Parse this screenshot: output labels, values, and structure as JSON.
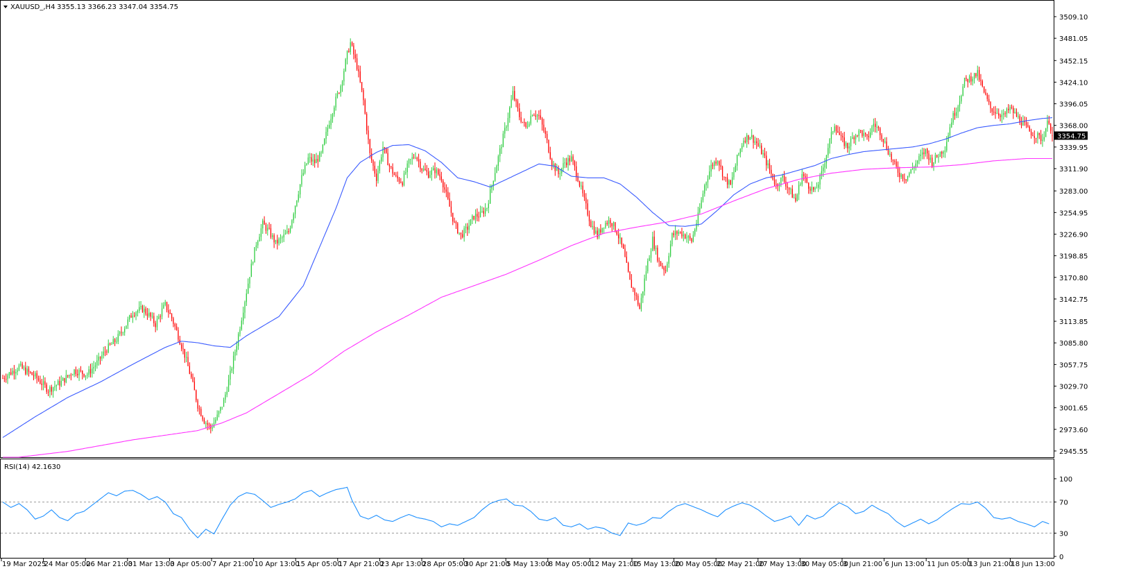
{
  "header": {
    "symbol": "XAUUSD_,H4",
    "ohlc": "3355.13 3366.23 3347.04 3354.75"
  },
  "price_axis": {
    "ticks": [
      "3509.10",
      "3481.05",
      "3452.15",
      "3424.10",
      "3396.05",
      "3368.00",
      "3339.95",
      "3311.90",
      "3283.00",
      "3254.95",
      "3226.90",
      "3198.85",
      "3170.80",
      "3142.75",
      "3113.85",
      "3085.80",
      "3057.75",
      "3029.70",
      "3001.65",
      "2973.60",
      "2945.55"
    ],
    "current_price": "3354.75"
  },
  "rsi_panel": {
    "label": "RSI(14) 42.1630",
    "ticks": [
      "100",
      "70",
      "30",
      "0"
    ],
    "levels": [
      70,
      30
    ]
  },
  "time_axis": {
    "labels": [
      "19 Mar 2025",
      "24 Mar 05:00",
      "26 Mar 21:00",
      "31 Mar 13:00",
      "3 Apr 05:00",
      "7 Apr 21:00",
      "10 Apr 13:00",
      "15 Apr 05:00",
      "17 Apr 21:00",
      "23 Apr 13:00",
      "28 Apr 05:00",
      "30 Apr 21:00",
      "5 May 13:00",
      "8 May 05:00",
      "12 May 21:00",
      "15 May 13:00",
      "20 May 05:00",
      "22 May 21:00",
      "27 May 13:00",
      "30 May 05:00",
      "3 Jun 21:00",
      "6 Jun 13:00",
      "11 Jun 05:00",
      "13 Jun 21:00",
      "18 Jun 13:00"
    ]
  },
  "colors": {
    "bull": "#2ecc40",
    "bear": "#ff0000",
    "ma_fast": "#3a5bff",
    "ma_slow": "#ff33ff",
    "rsi": "#1e90ff",
    "price_label_bg": "#000000"
  },
  "chart_data": {
    "type": "candlestick",
    "title": "XAUUSD_,H4",
    "ylim": [
      2945.55,
      3509.1
    ],
    "x_start": "19 Mar 2025",
    "x_end": "18 Jun 13:00",
    "ohlc_last": {
      "open": 3355.13,
      "high": 3366.23,
      "low": 3347.04,
      "close": 3354.75
    },
    "price_path": [
      [
        0,
        3040
      ],
      [
        10,
        3055
      ],
      [
        20,
        3042
      ],
      [
        28,
        3025
      ],
      [
        36,
        3035
      ],
      [
        44,
        3050
      ],
      [
        52,
        3045
      ],
      [
        58,
        3060
      ],
      [
        64,
        3078
      ],
      [
        70,
        3090
      ],
      [
        76,
        3110
      ],
      [
        80,
        3125
      ],
      [
        86,
        3130
      ],
      [
        90,
        3122
      ],
      [
        94,
        3110
      ],
      [
        98,
        3128
      ],
      [
        100,
        3135
      ],
      [
        104,
        3118
      ],
      [
        108,
        3095
      ],
      [
        112,
        3070
      ],
      [
        116,
        3040
      ],
      [
        120,
        3005
      ],
      [
        124,
        2985
      ],
      [
        128,
        2975
      ],
      [
        132,
        2990
      ],
      [
        136,
        3010
      ],
      [
        140,
        3045
      ],
      [
        144,
        3085
      ],
      [
        148,
        3130
      ],
      [
        152,
        3175
      ],
      [
        156,
        3215
      ],
      [
        160,
        3240
      ],
      [
        164,
        3230
      ],
      [
        168,
        3215
      ],
      [
        172,
        3222
      ],
      [
        176,
        3230
      ],
      [
        180,
        3265
      ],
      [
        184,
        3300
      ],
      [
        188,
        3325
      ],
      [
        192,
        3320
      ],
      [
        196,
        3330
      ],
      [
        200,
        3365
      ],
      [
        204,
        3395
      ],
      [
        208,
        3420
      ],
      [
        212,
        3460
      ],
      [
        214,
        3475
      ],
      [
        218,
        3445
      ],
      [
        222,
        3400
      ],
      [
        226,
        3330
      ],
      [
        230,
        3300
      ],
      [
        234,
        3340
      ],
      [
        238,
        3315
      ],
      [
        242,
        3300
      ],
      [
        246,
        3295
      ],
      [
        250,
        3320
      ],
      [
        254,
        3330
      ],
      [
        258,
        3312
      ],
      [
        262,
        3305
      ],
      [
        266,
        3310
      ],
      [
        270,
        3300
      ],
      [
        274,
        3270
      ],
      [
        278,
        3240
      ],
      [
        282,
        3225
      ],
      [
        286,
        3235
      ],
      [
        290,
        3250
      ],
      [
        294,
        3252
      ],
      [
        298,
        3262
      ],
      [
        302,
        3300
      ],
      [
        306,
        3335
      ],
      [
        310,
        3370
      ],
      [
        314,
        3410
      ],
      [
        318,
        3380
      ],
      [
        322,
        3365
      ],
      [
        326,
        3385
      ],
      [
        330,
        3380
      ],
      [
        334,
        3355
      ],
      [
        338,
        3320
      ],
      [
        342,
        3305
      ],
      [
        346,
        3320
      ],
      [
        350,
        3325
      ],
      [
        354,
        3300
      ],
      [
        358,
        3270
      ],
      [
        362,
        3240
      ],
      [
        366,
        3225
      ],
      [
        370,
        3240
      ],
      [
        374,
        3245
      ],
      [
        378,
        3230
      ],
      [
        382,
        3205
      ],
      [
        386,
        3165
      ],
      [
        390,
        3145
      ],
      [
        392,
        3130
      ],
      [
        396,
        3180
      ],
      [
        400,
        3220
      ],
      [
        404,
        3190
      ],
      [
        408,
        3180
      ],
      [
        412,
        3225
      ],
      [
        416,
        3230
      ],
      [
        420,
        3225
      ],
      [
        424,
        3218
      ],
      [
        428,
        3250
      ],
      [
        432,
        3290
      ],
      [
        436,
        3315
      ],
      [
        440,
        3325
      ],
      [
        444,
        3300
      ],
      [
        448,
        3290
      ],
      [
        452,
        3325
      ],
      [
        456,
        3350
      ],
      [
        460,
        3355
      ],
      [
        464,
        3345
      ],
      [
        468,
        3330
      ],
      [
        472,
        3310
      ],
      [
        476,
        3290
      ],
      [
        480,
        3300
      ],
      [
        484,
        3285
      ],
      [
        488,
        3270
      ],
      [
        492,
        3305
      ],
      [
        496,
        3290
      ],
      [
        500,
        3282
      ],
      [
        504,
        3305
      ],
      [
        508,
        3340
      ],
      [
        512,
        3370
      ],
      [
        516,
        3350
      ],
      [
        520,
        3340
      ],
      [
        524,
        3355
      ],
      [
        528,
        3360
      ],
      [
        532,
        3350
      ],
      [
        536,
        3370
      ],
      [
        540,
        3360
      ],
      [
        544,
        3340
      ],
      [
        548,
        3320
      ],
      [
        552,
        3305
      ],
      [
        556,
        3300
      ],
      [
        560,
        3312
      ],
      [
        564,
        3325
      ],
      [
        568,
        3335
      ],
      [
        572,
        3320
      ],
      [
        576,
        3330
      ],
      [
        580,
        3340
      ],
      [
        584,
        3375
      ],
      [
        588,
        3395
      ],
      [
        592,
        3425
      ],
      [
        596,
        3430
      ],
      [
        600,
        3435
      ],
      [
        604,
        3410
      ],
      [
        608,
        3390
      ],
      [
        612,
        3385
      ],
      [
        616,
        3380
      ],
      [
        620,
        3390
      ],
      [
        624,
        3380
      ],
      [
        628,
        3370
      ],
      [
        632,
        3360
      ],
      [
        636,
        3355
      ],
      [
        640,
        3350
      ],
      [
        642,
        3365
      ],
      [
        644,
        3375
      ],
      [
        646,
        3355
      ]
    ],
    "ma_fast": [
      [
        0,
        2963
      ],
      [
        20,
        2990
      ],
      [
        40,
        3015
      ],
      [
        60,
        3035
      ],
      [
        80,
        3058
      ],
      [
        100,
        3080
      ],
      [
        110,
        3088
      ],
      [
        120,
        3086
      ],
      [
        130,
        3082
      ],
      [
        140,
        3080
      ],
      [
        150,
        3095
      ],
      [
        170,
        3120
      ],
      [
        185,
        3160
      ],
      [
        195,
        3210
      ],
      [
        205,
        3260
      ],
      [
        212,
        3300
      ],
      [
        220,
        3320
      ],
      [
        230,
        3333
      ],
      [
        240,
        3342
      ],
      [
        250,
        3343
      ],
      [
        260,
        3335
      ],
      [
        270,
        3320
      ],
      [
        280,
        3300
      ],
      [
        290,
        3295
      ],
      [
        300,
        3288
      ],
      [
        310,
        3298
      ],
      [
        320,
        3308
      ],
      [
        330,
        3318
      ],
      [
        340,
        3315
      ],
      [
        350,
        3302
      ],
      [
        360,
        3300
      ],
      [
        370,
        3300
      ],
      [
        380,
        3292
      ],
      [
        390,
        3275
      ],
      [
        400,
        3255
      ],
      [
        410,
        3238
      ],
      [
        420,
        3237
      ],
      [
        430,
        3240
      ],
      [
        440,
        3258
      ],
      [
        450,
        3278
      ],
      [
        460,
        3292
      ],
      [
        470,
        3300
      ],
      [
        480,
        3304
      ],
      [
        490,
        3310
      ],
      [
        500,
        3316
      ],
      [
        510,
        3325
      ],
      [
        520,
        3330
      ],
      [
        530,
        3334
      ],
      [
        540,
        3336
      ],
      [
        550,
        3338
      ],
      [
        560,
        3340
      ],
      [
        570,
        3344
      ],
      [
        580,
        3350
      ],
      [
        590,
        3358
      ],
      [
        600,
        3365
      ],
      [
        610,
        3368
      ],
      [
        620,
        3370
      ],
      [
        630,
        3374
      ],
      [
        640,
        3377
      ],
      [
        646,
        3378
      ]
    ],
    "ma_slow": [
      [
        0,
        2935
      ],
      [
        40,
        2945
      ],
      [
        80,
        2960
      ],
      [
        120,
        2972
      ],
      [
        135,
        2982
      ],
      [
        150,
        2995
      ],
      [
        170,
        3020
      ],
      [
        190,
        3045
      ],
      [
        210,
        3075
      ],
      [
        230,
        3100
      ],
      [
        250,
        3122
      ],
      [
        270,
        3145
      ],
      [
        290,
        3160
      ],
      [
        310,
        3175
      ],
      [
        330,
        3193
      ],
      [
        350,
        3212
      ],
      [
        370,
        3228
      ],
      [
        390,
        3236
      ],
      [
        410,
        3243
      ],
      [
        430,
        3253
      ],
      [
        450,
        3270
      ],
      [
        470,
        3286
      ],
      [
        490,
        3298
      ],
      [
        510,
        3306
      ],
      [
        530,
        3311
      ],
      [
        550,
        3313
      ],
      [
        570,
        3314
      ],
      [
        590,
        3317
      ],
      [
        610,
        3322
      ],
      [
        630,
        3325
      ],
      [
        646,
        3325
      ]
    ],
    "rsi": [
      [
        0,
        70
      ],
      [
        5,
        63
      ],
      [
        10,
        68
      ],
      [
        15,
        60
      ],
      [
        20,
        48
      ],
      [
        25,
        52
      ],
      [
        30,
        60
      ],
      [
        35,
        50
      ],
      [
        40,
        46
      ],
      [
        45,
        55
      ],
      [
        50,
        58
      ],
      [
        55,
        66
      ],
      [
        60,
        74
      ],
      [
        65,
        82
      ],
      [
        70,
        78
      ],
      [
        75,
        84
      ],
      [
        80,
        85
      ],
      [
        85,
        80
      ],
      [
        90,
        73
      ],
      [
        95,
        77
      ],
      [
        100,
        70
      ],
      [
        105,
        55
      ],
      [
        110,
        50
      ],
      [
        115,
        35
      ],
      [
        120,
        24
      ],
      [
        125,
        35
      ],
      [
        130,
        29
      ],
      [
        135,
        48
      ],
      [
        140,
        66
      ],
      [
        145,
        77
      ],
      [
        150,
        82
      ],
      [
        155,
        80
      ],
      [
        160,
        72
      ],
      [
        165,
        63
      ],
      [
        170,
        67
      ],
      [
        175,
        70
      ],
      [
        180,
        74
      ],
      [
        185,
        82
      ],
      [
        190,
        85
      ],
      [
        195,
        77
      ],
      [
        200,
        82
      ],
      [
        205,
        86
      ],
      [
        210,
        88
      ],
      [
        212,
        89
      ],
      [
        215,
        72
      ],
      [
        220,
        52
      ],
      [
        225,
        48
      ],
      [
        230,
        53
      ],
      [
        235,
        47
      ],
      [
        240,
        45
      ],
      [
        245,
        50
      ],
      [
        250,
        54
      ],
      [
        255,
        50
      ],
      [
        260,
        48
      ],
      [
        265,
        45
      ],
      [
        270,
        38
      ],
      [
        275,
        42
      ],
      [
        280,
        40
      ],
      [
        285,
        45
      ],
      [
        290,
        50
      ],
      [
        295,
        60
      ],
      [
        300,
        68
      ],
      [
        305,
        72
      ],
      [
        310,
        74
      ],
      [
        315,
        66
      ],
      [
        320,
        65
      ],
      [
        325,
        58
      ],
      [
        330,
        48
      ],
      [
        335,
        46
      ],
      [
        340,
        50
      ],
      [
        345,
        40
      ],
      [
        350,
        38
      ],
      [
        355,
        42
      ],
      [
        360,
        35
      ],
      [
        365,
        38
      ],
      [
        370,
        36
      ],
      [
        375,
        30
      ],
      [
        380,
        27
      ],
      [
        385,
        43
      ],
      [
        390,
        40
      ],
      [
        395,
        43
      ],
      [
        400,
        50
      ],
      [
        405,
        49
      ],
      [
        410,
        58
      ],
      [
        415,
        65
      ],
      [
        420,
        68
      ],
      [
        425,
        64
      ],
      [
        430,
        60
      ],
      [
        435,
        55
      ],
      [
        440,
        51
      ],
      [
        445,
        60
      ],
      [
        450,
        65
      ],
      [
        455,
        69
      ],
      [
        460,
        66
      ],
      [
        465,
        60
      ],
      [
        470,
        52
      ],
      [
        475,
        45
      ],
      [
        480,
        48
      ],
      [
        485,
        52
      ],
      [
        490,
        40
      ],
      [
        495,
        53
      ],
      [
        500,
        48
      ],
      [
        505,
        52
      ],
      [
        510,
        62
      ],
      [
        515,
        69
      ],
      [
        520,
        64
      ],
      [
        525,
        55
      ],
      [
        530,
        58
      ],
      [
        535,
        66
      ],
      [
        540,
        60
      ],
      [
        545,
        55
      ],
      [
        550,
        45
      ],
      [
        555,
        38
      ],
      [
        560,
        43
      ],
      [
        565,
        48
      ],
      [
        570,
        42
      ],
      [
        575,
        47
      ],
      [
        580,
        55
      ],
      [
        585,
        62
      ],
      [
        590,
        68
      ],
      [
        595,
        67
      ],
      [
        600,
        70
      ],
      [
        605,
        62
      ],
      [
        610,
        50
      ],
      [
        615,
        48
      ],
      [
        620,
        50
      ],
      [
        625,
        45
      ],
      [
        630,
        42
      ],
      [
        635,
        38
      ],
      [
        640,
        45
      ],
      [
        644,
        42
      ]
    ]
  }
}
